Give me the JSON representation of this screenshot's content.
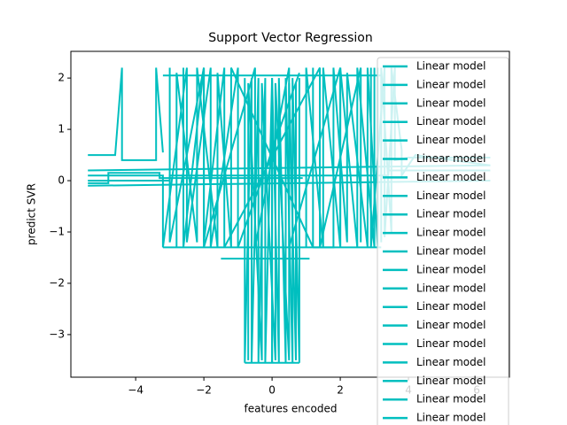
{
  "chart_data": {
    "type": "line",
    "title": "Support Vector Regression",
    "xlabel": "features encoded",
    "ylabel": "predict SVR",
    "xlim": [
      -5.9,
      6.96
    ],
    "ylim": [
      -3.83,
      2.52
    ],
    "xticks": [
      {
        "value": -4,
        "label": "−4"
      },
      {
        "value": -2,
        "label": "−2"
      },
      0,
      2,
      4,
      6
    ],
    "yticks": [
      {
        "value": -3,
        "label": "−3"
      },
      {
        "value": -2,
        "label": "−2"
      },
      {
        "value": -1,
        "label": "−1"
      },
      0,
      1,
      2
    ],
    "legend": "upper right",
    "series": [
      {
        "name": "Linear model",
        "color": "#00bfbf",
        "x": [
          -5.4,
          -3.2,
          -3.2,
          -2.5,
          -2.5,
          -1.8,
          -1.8,
          -1,
          -1,
          0.8
        ],
        "values": [
          0.1,
          0.1,
          -1.3,
          2.2,
          -1.2,
          2.2,
          -1.3,
          2.2,
          -1.3,
          2.1
        ]
      },
      {
        "name": "Linear model",
        "color": "#00bfbf",
        "x": [
          -0.8,
          -0.8,
          -0.6,
          -0.6,
          -0.4,
          -0.4,
          -0.2,
          -0.2,
          0,
          0
        ],
        "values": [
          2.0,
          -3.55,
          2.0,
          -3.55,
          2.0,
          -3.55,
          2.0,
          -3.55,
          2.0,
          -3.55
        ]
      },
      {
        "name": "Linear model",
        "color": "#00bfbf",
        "x": [
          0,
          0,
          0.2,
          0.2,
          0.4,
          0.4,
          0.6,
          0.6,
          0.8,
          0.8
        ],
        "values": [
          -3.55,
          2.0,
          -3.55,
          2.0,
          -3.55,
          2.0,
          -3.55,
          2.0,
          -3.55,
          2.0
        ]
      },
      {
        "name": "Linear model",
        "color": "#00bfbf",
        "x": [
          -5.4,
          -4.6,
          -4.6,
          -4.4,
          -4.4,
          -3.4,
          -3.4,
          -3.2
        ],
        "values": [
          0.5,
          0.5,
          0.5,
          2.2,
          0.4,
          0.4,
          2.2,
          0.55
        ]
      },
      {
        "name": "Linear model",
        "color": "#00bfbf",
        "x": [
          1,
          1,
          1.5,
          1.5,
          2,
          2,
          2.5,
          2.5,
          3,
          3
        ],
        "values": [
          -1.3,
          2.2,
          -1.3,
          2.2,
          -1.3,
          2.2,
          -1.3,
          2.2,
          -1.3,
          2.2
        ]
      },
      {
        "name": "Linear model",
        "color": "#00bfbf",
        "x": [
          3.2,
          3.2,
          3.5,
          3.5,
          3.8,
          3.8,
          4.2,
          6.4
        ],
        "values": [
          -1.2,
          2.2,
          -1.0,
          2.2,
          0.6,
          0.1,
          0.5,
          0.3
        ]
      },
      {
        "name": "Linear model",
        "color": "#00bfbf",
        "x": [
          -5.4,
          6.4
        ],
        "values": [
          -0.1,
          0.0
        ]
      },
      {
        "name": "Linear model",
        "color": "#00bfbf",
        "x": [
          -5.4,
          6.4
        ],
        "values": [
          0.2,
          0.3
        ]
      },
      {
        "name": "Linear model",
        "color": "#00bfbf",
        "x": [
          -1.5,
          1.1
        ],
        "values": [
          -1.52,
          -1.52
        ]
      },
      {
        "name": "Linear model",
        "color": "#00bfbf",
        "x": [
          -3,
          -3,
          -2,
          -2,
          -0.5,
          -0.5,
          0.5,
          0.5,
          2,
          2
        ],
        "values": [
          2.2,
          -1.2,
          2.2,
          -1.3,
          2.2,
          -1.3,
          2.2,
          -1.3,
          2.2,
          -1.3
        ]
      },
      {
        "name": "Linear model",
        "color": "#00bfbf",
        "x": [
          -2.8,
          -2.8,
          -2.2,
          -2.2,
          -1.6,
          -1.6,
          -1.2,
          -1.2,
          1.2,
          1.2
        ],
        "values": [
          -1.3,
          2.1,
          -1.2,
          2.2,
          -1.3,
          2.1,
          -1.3,
          2.2,
          -1.3,
          2.2
        ]
      },
      {
        "name": "Linear model",
        "color": "#00bfbf",
        "x": [
          1.2,
          1.8,
          1.8,
          2.2,
          2.2,
          2.8,
          2.8,
          3.1,
          3.1
        ],
        "values": [
          -1.3,
          -1.3,
          2.2,
          -1.2,
          2.1,
          -1.3,
          2.2,
          -1.3,
          2.2
        ]
      },
      {
        "name": "Linear model",
        "color": "#00bfbf",
        "x": [
          -5.4,
          -3.0,
          -3.0,
          3.4,
          3.4,
          6.4
        ],
        "values": [
          0.0,
          0.0,
          0.1,
          0.1,
          0.2,
          0.2
        ]
      },
      {
        "name": "Linear model",
        "color": "#00bfbf",
        "x": [
          -3.2,
          3.2
        ],
        "values": [
          -1.3,
          -1.3
        ]
      },
      {
        "name": "Linear model",
        "color": "#00bfbf",
        "x": [
          -0.8,
          0.8
        ],
        "values": [
          -3.55,
          -3.55
        ]
      },
      {
        "name": "Linear model",
        "color": "#00bfbf",
        "x": [
          -3.2,
          3.2
        ],
        "values": [
          2.05,
          2.05
        ]
      },
      {
        "name": "Linear model",
        "color": "#00bfbf",
        "x": [
          -0.7,
          -0.7,
          -0.3,
          -0.3,
          0.1,
          0.1,
          0.5,
          0.5,
          0.7,
          0.7
        ],
        "values": [
          -3.5,
          1.9,
          -3.5,
          1.9,
          -3.5,
          1.9,
          -3.5,
          1.9,
          -3.5,
          1.9
        ]
      },
      {
        "name": "Linear model",
        "color": "#00bfbf",
        "x": [
          -2.6,
          -2.6,
          -2.0,
          -2.0,
          -1.4,
          -1.4,
          1.4,
          1.4,
          2.6,
          2.6
        ],
        "values": [
          2.2,
          -1.3,
          2.2,
          -1.2,
          2.2,
          -1.3,
          2.2,
          -1.3,
          2.2,
          -1.2
        ]
      },
      {
        "name": "Linear model",
        "color": "#00bfbf",
        "x": [
          -5.4,
          -4.8,
          -4.8,
          -3.3,
          -3.3,
          0.9
        ],
        "values": [
          -0.05,
          -0.05,
          0.15,
          0.15,
          0.05,
          0.05
        ]
      },
      {
        "name": "Linear model",
        "color": "#00bfbf",
        "x": [
          2.9,
          2.9,
          3.3,
          3.3,
          3.6,
          3.6,
          4.0,
          6.4
        ],
        "values": [
          2.2,
          -1.3,
          2.2,
          -1.1,
          2.2,
          0.4,
          0.45,
          0.45
        ]
      }
    ]
  }
}
